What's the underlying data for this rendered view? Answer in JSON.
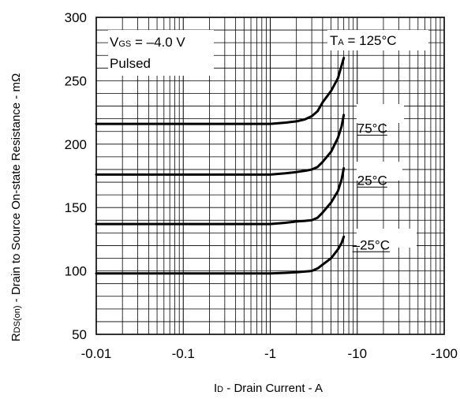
{
  "chart_data": {
    "type": "line",
    "title": "",
    "xscale": "log",
    "x_axis_values_are_negative": true,
    "xlim": [
      -0.01,
      -100
    ],
    "ylim": [
      50,
      300
    ],
    "grid": true,
    "xlabel": {
      "main": "I",
      "sub": "D",
      "rest": " - Drain Current - A"
    },
    "ylabel": {
      "main": "R",
      "sub": "DS(on)",
      "rest": " - Drain to Source On-state Resistance - mΩ"
    },
    "x_ticks": [
      {
        "value": -0.01,
        "label": "-0.01"
      },
      {
        "value": -0.1,
        "label": "-0.1"
      },
      {
        "value": -1,
        "label": "-1"
      },
      {
        "value": -10,
        "label": "-10"
      },
      {
        "value": -100,
        "label": "-100"
      }
    ],
    "y_ticks": [
      {
        "value": 50,
        "label": "50"
      },
      {
        "value": 100,
        "label": "100"
      },
      {
        "value": 150,
        "label": "150"
      },
      {
        "value": 200,
        "label": "200"
      },
      {
        "value": 250,
        "label": "250"
      },
      {
        "value": 300,
        "label": "300"
      }
    ],
    "conditions": [
      {
        "main": "V",
        "sub": "GS",
        "rest": " = –4.0 V"
      },
      {
        "text": "Pulsed"
      }
    ],
    "ta_label": {
      "main": "T",
      "sub": "A",
      "rest": " = 125°C"
    },
    "series": [
      {
        "name": "125°C",
        "label": "",
        "label_at": {
          "x": -7.2,
          "y": 270
        },
        "points": [
          [
            -0.01,
            216
          ],
          [
            -0.1,
            216
          ],
          [
            -1,
            216
          ],
          [
            -1.5,
            217
          ],
          [
            -2,
            218
          ],
          [
            -2.5,
            219.5
          ],
          [
            -3,
            222
          ],
          [
            -3.5,
            226
          ],
          [
            -4,
            233
          ],
          [
            -5,
            242
          ],
          [
            -6,
            252
          ],
          [
            -6.6,
            262
          ],
          [
            -7,
            268
          ]
        ]
      },
      {
        "name": "75°C",
        "label": "75°C",
        "label_at": {
          "x": -10,
          "y": 209
        },
        "points": [
          [
            -0.01,
            176
          ],
          [
            -0.1,
            176
          ],
          [
            -1,
            176
          ],
          [
            -1.5,
            177
          ],
          [
            -2,
            178
          ],
          [
            -2.5,
            179
          ],
          [
            -3,
            180
          ],
          [
            -3.5,
            182
          ],
          [
            -4,
            186
          ],
          [
            -5,
            194
          ],
          [
            -6,
            205
          ],
          [
            -6.6,
            214
          ],
          [
            -7,
            223
          ]
        ]
      },
      {
        "name": "25°C",
        "label": "25°C",
        "label_at": {
          "x": -10,
          "y": 168
        },
        "points": [
          [
            -0.01,
            137
          ],
          [
            -0.1,
            137
          ],
          [
            -1,
            137
          ],
          [
            -1.5,
            138
          ],
          [
            -2,
            139
          ],
          [
            -2.5,
            139.5
          ],
          [
            -3,
            140
          ],
          [
            -3.5,
            142
          ],
          [
            -4,
            146
          ],
          [
            -5,
            154
          ],
          [
            -6,
            163
          ],
          [
            -6.6,
            172
          ],
          [
            -7,
            181
          ]
        ]
      },
      {
        "name": "–25°C",
        "label": "–25°C",
        "label_at": {
          "x": -8.8,
          "y": 117
        },
        "points": [
          [
            -0.01,
            98
          ],
          [
            -0.1,
            98
          ],
          [
            -1,
            98
          ],
          [
            -1.5,
            98.5
          ],
          [
            -2,
            99
          ],
          [
            -2.5,
            99.5
          ],
          [
            -3,
            100
          ],
          [
            -3.5,
            102
          ],
          [
            -4,
            105
          ],
          [
            -5,
            110
          ],
          [
            -6,
            117
          ],
          [
            -6.6,
            122
          ],
          [
            -7,
            127
          ]
        ]
      }
    ]
  }
}
